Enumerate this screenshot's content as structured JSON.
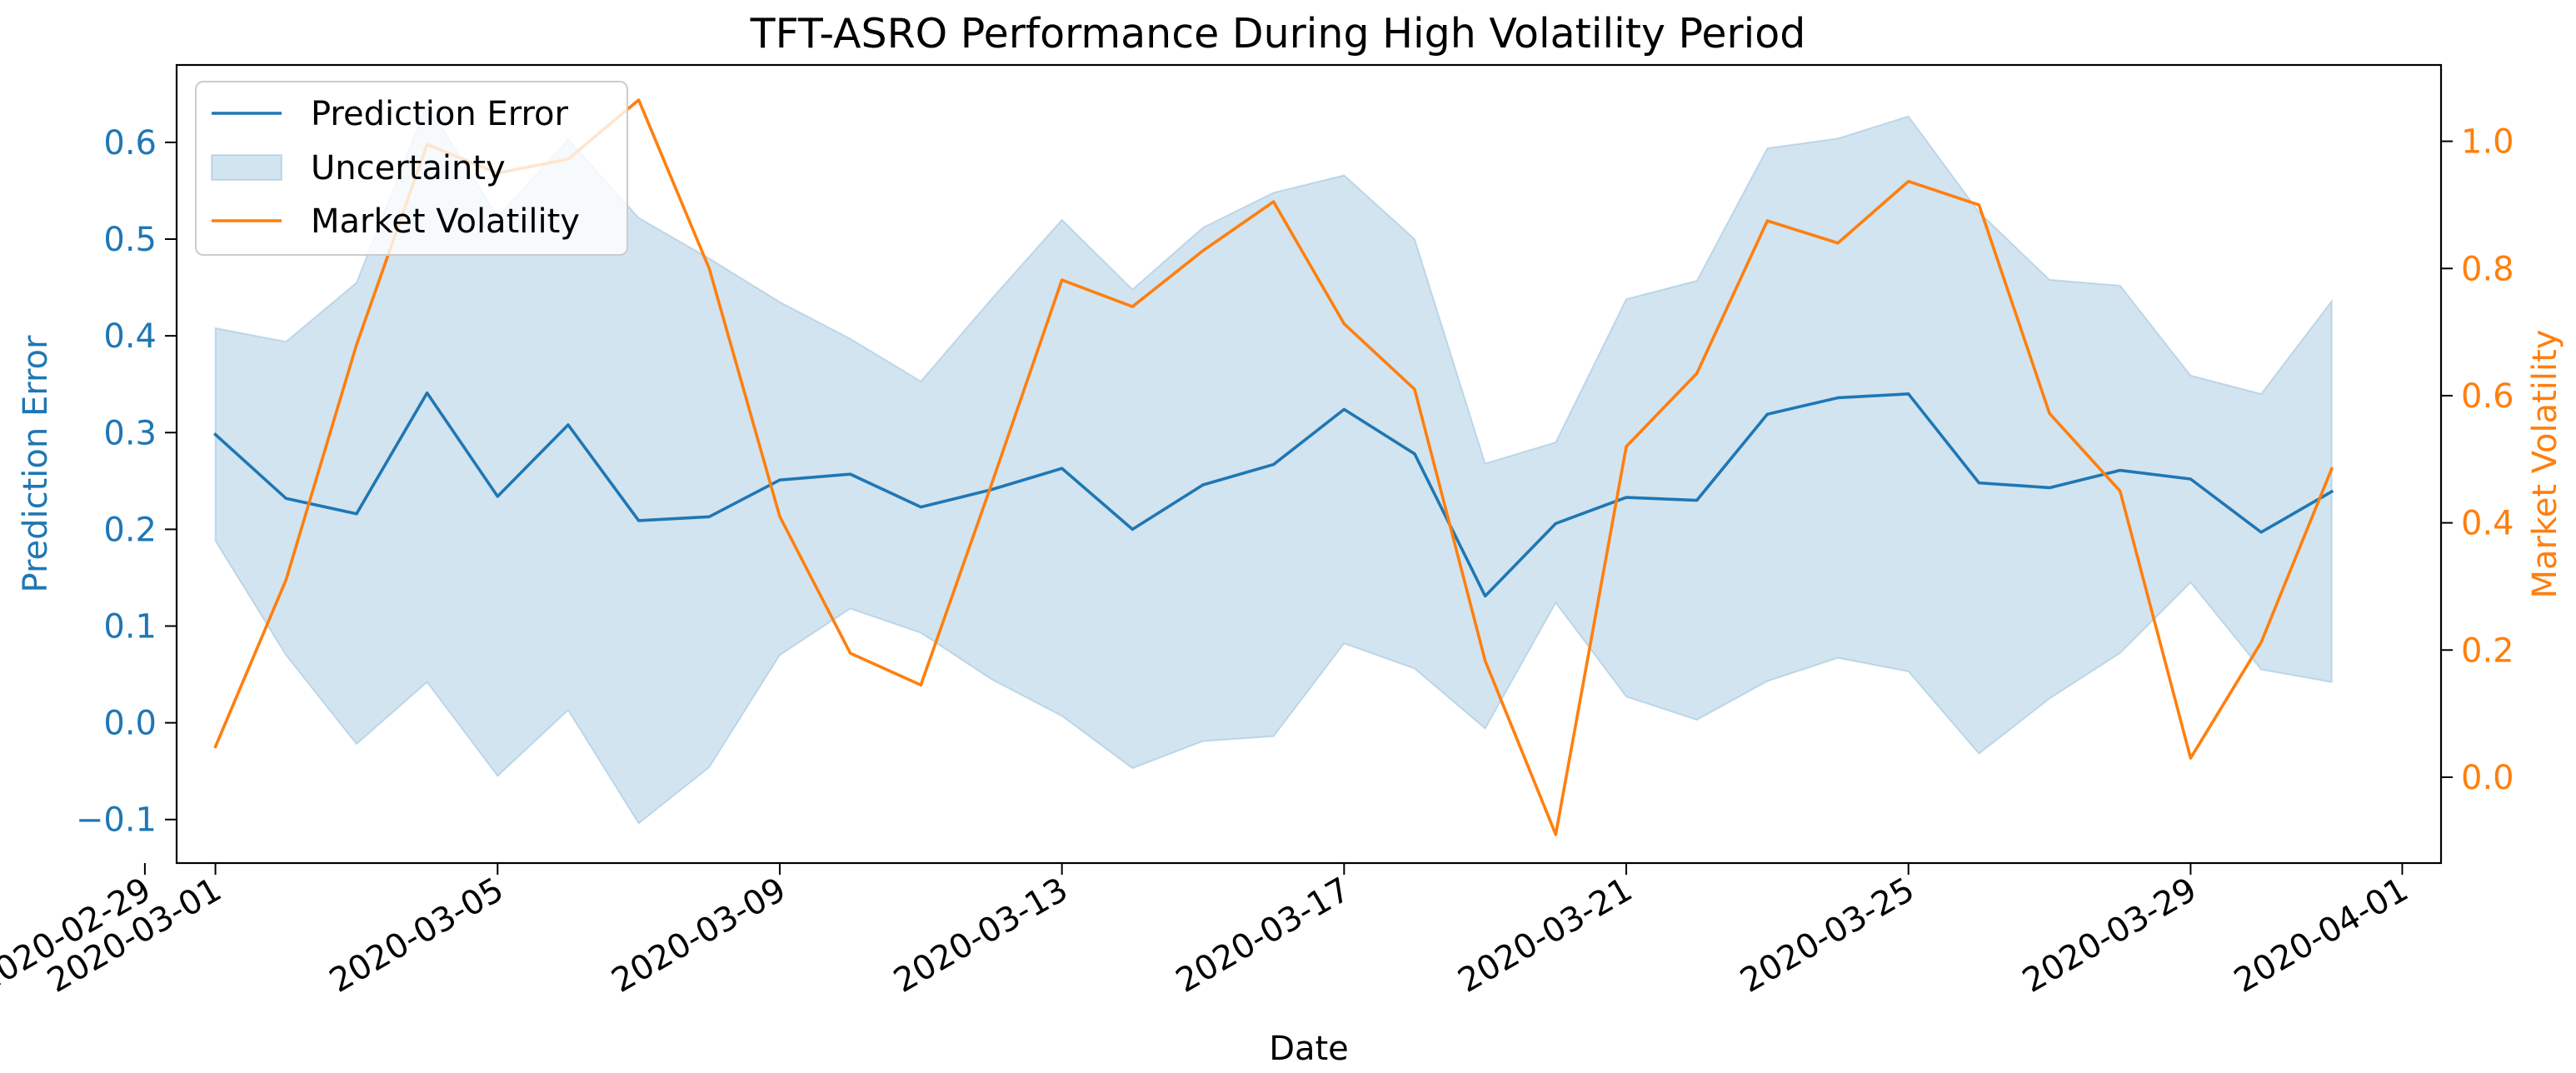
{
  "chart_data": {
    "type": "line",
    "title": "TFT-ASRO Performance During High Volatility Period",
    "xlabel": "Date",
    "ylabel_left": "Prediction Error",
    "ylabel_right": "Market Volatility",
    "x_start": "2020-03-01",
    "x_count": 31,
    "xlim_days": [
      -0.55,
      31.55
    ],
    "ylim_left": [
      -0.145,
      0.68
    ],
    "ylim_right": [
      -0.135,
      1.12
    ],
    "x_ticks": [
      {
        "day": -1,
        "label": "2020-02-29"
      },
      {
        "day": 0,
        "label": "2020-03-01"
      },
      {
        "day": 4,
        "label": "2020-03-05"
      },
      {
        "day": 8,
        "label": "2020-03-09"
      },
      {
        "day": 12,
        "label": "2020-03-13"
      },
      {
        "day": 16,
        "label": "2020-03-17"
      },
      {
        "day": 20,
        "label": "2020-03-21"
      },
      {
        "day": 24,
        "label": "2020-03-25"
      },
      {
        "day": 28,
        "label": "2020-03-29"
      },
      {
        "day": 31,
        "label": "2020-04-01"
      }
    ],
    "y_ticks_left": [
      {
        "value": -0.1,
        "label": "−0.1"
      },
      {
        "value": 0.0,
        "label": "0.0"
      },
      {
        "value": 0.1,
        "label": "0.1"
      },
      {
        "value": 0.2,
        "label": "0.2"
      },
      {
        "value": 0.3,
        "label": "0.3"
      },
      {
        "value": 0.4,
        "label": "0.4"
      },
      {
        "value": 0.5,
        "label": "0.5"
      },
      {
        "value": 0.6,
        "label": "0.6"
      }
    ],
    "y_ticks_right": [
      {
        "value": 0.0,
        "label": "0.0"
      },
      {
        "value": 0.2,
        "label": "0.2"
      },
      {
        "value": 0.4,
        "label": "0.4"
      },
      {
        "value": 0.6,
        "label": "0.6"
      },
      {
        "value": 0.8,
        "label": "0.8"
      },
      {
        "value": 1.0,
        "label": "1.0"
      }
    ],
    "series": [
      {
        "name": "Prediction Error",
        "axis": "left",
        "kind": "line",
        "color": "#1f77b4",
        "values": [
          0.298,
          0.232,
          0.216,
          0.341,
          0.234,
          0.308,
          0.209,
          0.213,
          0.251,
          0.257,
          0.223,
          0.241,
          0.263,
          0.2,
          0.246,
          0.267,
          0.324,
          0.278,
          0.131,
          0.206,
          0.233,
          0.23,
          0.319,
          0.336,
          0.34,
          0.248,
          0.243,
          0.261,
          0.252,
          0.197,
          0.239
        ]
      },
      {
        "name": "Uncertainty",
        "axis": "left",
        "kind": "band",
        "color": "#1f77b4",
        "lower": [
          0.188,
          0.07,
          -0.022,
          0.042,
          -0.055,
          0.013,
          -0.104,
          -0.046,
          0.07,
          0.118,
          0.093,
          0.045,
          0.007,
          -0.047,
          -0.019,
          -0.014,
          0.082,
          0.056,
          -0.006,
          0.124,
          0.027,
          0.003,
          0.043,
          0.067,
          0.053,
          -0.032,
          0.025,
          0.072,
          0.145,
          0.055,
          0.042
        ],
        "upper": [
          0.408,
          0.394,
          0.455,
          0.64,
          0.523,
          0.603,
          0.522,
          0.48,
          0.435,
          0.397,
          0.353,
          0.438,
          0.52,
          0.448,
          0.512,
          0.548,
          0.566,
          0.5,
          0.268,
          0.29,
          0.438,
          0.457,
          0.594,
          0.604,
          0.627,
          0.528,
          0.458,
          0.452,
          0.359,
          0.34,
          0.436
        ]
      },
      {
        "name": "Market Volatility",
        "axis": "right",
        "kind": "line",
        "color": "#ff7f0e",
        "values": [
          0.048,
          0.31,
          0.68,
          0.995,
          0.95,
          0.972,
          1.065,
          0.8,
          0.41,
          0.195,
          0.145,
          0.46,
          0.782,
          0.74,
          0.828,
          0.905,
          0.713,
          0.61,
          0.183,
          -0.09,
          0.52,
          0.635,
          0.875,
          0.84,
          0.937,
          0.9,
          0.572,
          0.45,
          0.03,
          0.212,
          0.485
        ]
      }
    ],
    "legend": {
      "location": "top-left",
      "entries": [
        "Prediction Error",
        "Uncertainty",
        "Market Volatility"
      ]
    },
    "colors": {
      "left_axis": "#1f77b4",
      "right_axis": "#ff7f0e",
      "band_fill": "#1f77b4",
      "frame": "#000000"
    }
  }
}
